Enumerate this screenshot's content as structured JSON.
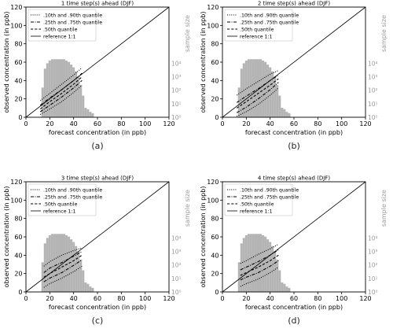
{
  "chart_data": [
    {
      "type": "line",
      "caption": "(a)",
      "title": "1 time step(s) ahead (DJF)",
      "xlabel": "forecast concentration (in ppb)",
      "ylabel": "observed concentration (in ppb)",
      "y2label": "sample size",
      "xlim": [
        0,
        120
      ],
      "ylim": [
        0,
        120
      ],
      "xticks": [
        "0",
        "20",
        "40",
        "60",
        "80",
        "100",
        "120"
      ],
      "yticks": [
        "0",
        "20",
        "40",
        "60",
        "80",
        "100",
        "120"
      ],
      "y2ticks": [
        "10⁰",
        "10¹",
        "10²",
        "10³",
        "10⁴"
      ],
      "legend_position": "top-left",
      "legend": [
        ".10th and .90th quantile",
        ".25th and .75th quantile",
        ".50th quantile",
        "reference 1:1"
      ],
      "histogram": {
        "x": [
          14,
          16,
          18,
          20,
          22,
          24,
          26,
          28,
          30,
          32,
          34,
          36,
          38,
          40,
          42,
          44,
          46,
          48,
          50,
          52,
          54,
          56
        ],
        "log10_count": [
          2.2,
          3.6,
          4.0,
          4.2,
          4.3,
          4.3,
          4.3,
          4.3,
          4.3,
          4.3,
          4.2,
          4.1,
          3.9,
          3.7,
          3.4,
          3.0,
          2.4,
          1.6,
          0.7,
          0.6,
          0.4,
          0.3
        ]
      },
      "series": [
        {
          "style": "dotted",
          "x": [
            12,
            20,
            30,
            40,
            47
          ],
          "y": [
            18,
            26,
            36,
            46,
            54
          ]
        },
        {
          "style": "dashdot",
          "x": [
            12,
            20,
            30,
            40,
            47
          ],
          "y": [
            13,
            21,
            30,
            40,
            48
          ]
        },
        {
          "style": "dashed",
          "x": [
            12,
            20,
            30,
            40,
            47
          ],
          "y": [
            9,
            17,
            26,
            36,
            44
          ]
        },
        {
          "style": "dashdot",
          "x": [
            12,
            20,
            30,
            40,
            47
          ],
          "y": [
            6,
            13,
            22,
            32,
            40
          ]
        },
        {
          "style": "dotted",
          "x": [
            12,
            20,
            30,
            40,
            47
          ],
          "y": [
            3,
            9,
            17,
            27,
            35
          ]
        }
      ]
    },
    {
      "type": "line",
      "caption": "(b)",
      "title": "2 time step(s) ahead (DJF)",
      "xlabel": "forecast concentration (in ppb)",
      "ylabel": "observed concentration (in ppb)",
      "y2label": "sample size",
      "xlim": [
        0,
        120
      ],
      "ylim": [
        0,
        120
      ],
      "xticks": [
        "0",
        "20",
        "40",
        "60",
        "80",
        "100",
        "120"
      ],
      "yticks": [
        "0",
        "20",
        "40",
        "60",
        "80",
        "100",
        "120"
      ],
      "y2ticks": [
        "10⁰",
        "10¹",
        "10²",
        "10³",
        "10⁴"
      ],
      "legend_position": "top-left",
      "legend": [
        ".10th and .90th quantile",
        ".25th and .75th quantile",
        ".50th quantile",
        "reference 1:1"
      ],
      "histogram": {
        "x": [
          14,
          16,
          18,
          20,
          22,
          24,
          26,
          28,
          30,
          32,
          34,
          36,
          38,
          40,
          42,
          44,
          46,
          48,
          50,
          52,
          54,
          56
        ],
        "log10_count": [
          2.2,
          3.6,
          4.0,
          4.2,
          4.3,
          4.3,
          4.3,
          4.3,
          4.3,
          4.3,
          4.2,
          4.1,
          3.9,
          3.7,
          3.4,
          3.0,
          2.4,
          1.6,
          0.7,
          0.6,
          0.4,
          0.3
        ]
      },
      "series": [
        {
          "style": "dotted",
          "x": [
            12,
            20,
            30,
            40,
            47
          ],
          "y": [
            24,
            31,
            39,
            47,
            51
          ]
        },
        {
          "style": "dashdot",
          "x": [
            12,
            20,
            30,
            40,
            47
          ],
          "y": [
            16,
            23,
            31,
            40,
            46
          ]
        },
        {
          "style": "dashed",
          "x": [
            12,
            20,
            30,
            40,
            47
          ],
          "y": [
            10,
            17,
            26,
            35,
            42
          ]
        },
        {
          "style": "dashdot",
          "x": [
            12,
            20,
            30,
            40,
            47
          ],
          "y": [
            5,
            11,
            20,
            30,
            38
          ]
        },
        {
          "style": "dotted",
          "x": [
            12,
            20,
            30,
            40,
            47
          ],
          "y": [
            1,
            6,
            14,
            24,
            32
          ]
        }
      ]
    },
    {
      "type": "line",
      "caption": "(c)",
      "title": "3 time step(s) ahead (DJF)",
      "xlabel": "forecast concentration (in ppb)",
      "ylabel": "observed concentration (in ppb)",
      "y2label": "sample size",
      "xlim": [
        0,
        120
      ],
      "ylim": [
        0,
        120
      ],
      "xticks": [
        "0",
        "20",
        "40",
        "60",
        "80",
        "100",
        "120"
      ],
      "yticks": [
        "0",
        "20",
        "40",
        "60",
        "80",
        "100",
        "120"
      ],
      "y2ticks": [
        "10⁰",
        "10¹",
        "10²",
        "10³",
        "10⁴"
      ],
      "legend_position": "top-left",
      "legend": [
        ".10th and .90th quantile",
        ".25th and .75th quantile",
        ".50th quantile",
        "reference 1:1"
      ],
      "histogram": {
        "x": [
          14,
          16,
          18,
          20,
          22,
          24,
          26,
          28,
          30,
          32,
          34,
          36,
          38,
          40,
          42,
          44,
          46,
          48,
          50,
          52,
          54,
          56
        ],
        "log10_count": [
          2.2,
          3.6,
          4.0,
          4.2,
          4.3,
          4.3,
          4.3,
          4.3,
          4.3,
          4.3,
          4.2,
          4.1,
          3.9,
          3.7,
          3.4,
          3.0,
          2.4,
          1.6,
          0.7,
          0.6,
          0.4,
          0.3
        ]
      },
      "series": [
        {
          "style": "dotted",
          "x": [
            15,
            20,
            30,
            40,
            47
          ],
          "y": [
            28,
            33,
            40,
            45,
            48
          ]
        },
        {
          "style": "dashdot",
          "x": [
            15,
            20,
            30,
            40,
            47
          ],
          "y": [
            21,
            26,
            32,
            39,
            44
          ]
        },
        {
          "style": "dashed",
          "x": [
            15,
            20,
            30,
            40,
            47
          ],
          "y": [
            16,
            20,
            27,
            34,
            40
          ]
        },
        {
          "style": "dashdot",
          "x": [
            15,
            20,
            30,
            40,
            47
          ],
          "y": [
            11,
            15,
            21,
            29,
            35
          ]
        },
        {
          "style": "dotted",
          "x": [
            15,
            20,
            30,
            40,
            47
          ],
          "y": [
            5,
            9,
            15,
            22,
            28
          ]
        }
      ]
    },
    {
      "type": "line",
      "caption": "(d)",
      "title": "4 time step(s) ahead (DJF)",
      "xlabel": "forecast concentration (in ppb)",
      "ylabel": "observed concentration (in ppb)",
      "y2label": "sample size",
      "xlim": [
        0,
        120
      ],
      "ylim": [
        0,
        120
      ],
      "xticks": [
        "0",
        "20",
        "40",
        "60",
        "80",
        "100",
        "120"
      ],
      "yticks": [
        "0",
        "20",
        "40",
        "60",
        "80",
        "100",
        "120"
      ],
      "y2ticks": [
        "10⁰",
        "10¹",
        "10²",
        "10³",
        "10⁴"
      ],
      "legend_position": "top-left",
      "legend": [
        ".10th and .90th quantile",
        ".25th and .75th quantile",
        ".50th quantile",
        "reference 1:1"
      ],
      "histogram": {
        "x": [
          14,
          16,
          18,
          20,
          22,
          24,
          26,
          28,
          30,
          32,
          34,
          36,
          38,
          40,
          42,
          44,
          46,
          48,
          50,
          52,
          54,
          56
        ],
        "log10_count": [
          2.2,
          3.6,
          4.0,
          4.2,
          4.3,
          4.3,
          4.3,
          4.3,
          4.3,
          4.3,
          4.2,
          4.1,
          3.9,
          3.7,
          3.4,
          3.0,
          2.4,
          1.6,
          0.7,
          0.6,
          0.4,
          0.3
        ]
      },
      "series": [
        {
          "style": "dotted",
          "x": [
            15,
            20,
            30,
            40,
            47
          ],
          "y": [
            31,
            34,
            41,
            47,
            52
          ]
        },
        {
          "style": "dashdot",
          "x": [
            15,
            20,
            30,
            40,
            47
          ],
          "y": [
            24,
            27,
            33,
            40,
            46
          ]
        },
        {
          "style": "dashed",
          "x": [
            15,
            20,
            30,
            40,
            47
          ],
          "y": [
            18,
            21,
            27,
            34,
            40
          ]
        },
        {
          "style": "dashdot",
          "x": [
            15,
            20,
            30,
            40,
            47
          ],
          "y": [
            13,
            16,
            21,
            28,
            34
          ]
        },
        {
          "style": "dotted",
          "x": [
            15,
            20,
            30,
            40,
            47
          ],
          "y": [
            6,
            9,
            14,
            21,
            27
          ]
        }
      ]
    }
  ],
  "colors": {
    "histogram": "#b4b4b4",
    "secondary_axis_text": "#9a9a9a",
    "lines": "#000000"
  }
}
